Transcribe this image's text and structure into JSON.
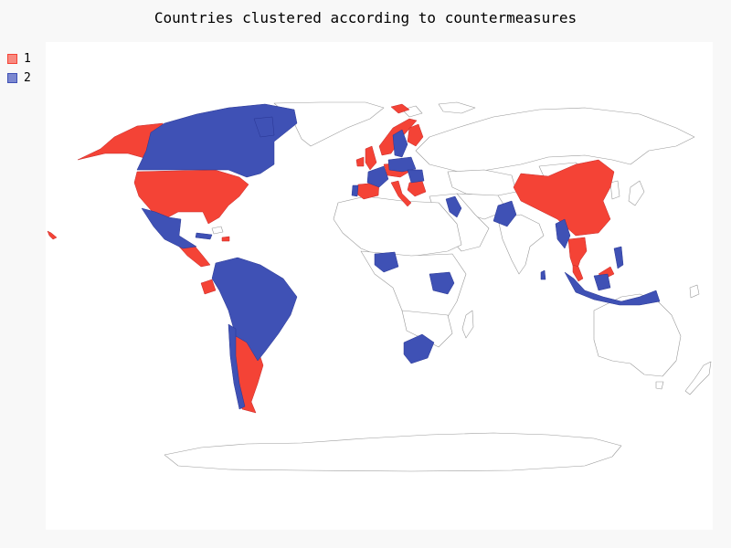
{
  "chart_data": {
    "type": "map",
    "title": "Countries clustered according to countermeasures",
    "series": [
      {
        "name": "1",
        "color": "#f44336",
        "countries": [
          "United States",
          "Alaska (US)",
          "Guatemala",
          "Honduras",
          "Nicaragua",
          "Costa Rica",
          "Panama",
          "Dominican Republic",
          "Ecuador",
          "Argentina",
          "Uruguay",
          "Chile (south)",
          "Ireland",
          "United Kingdom",
          "Spain",
          "Italy",
          "Austria",
          "Switzerland",
          "Czech Republic",
          "Croatia",
          "Greece",
          "Bulgaria",
          "Norway",
          "Finland",
          "Estonia",
          "Iceland",
          "China",
          "Thailand",
          "Cambodia",
          "Vietnam",
          "Malaysia (peninsula)",
          "Malaysia (Borneo)",
          "Brunei",
          "Hawaii (US)"
        ]
      },
      {
        "name": "2",
        "color": "#3f51b5",
        "countries": [
          "Canada",
          "Greenland (partial)",
          "Mexico",
          "El Salvador",
          "Cuba",
          "Brazil",
          "Bolivia",
          "Paraguay",
          "Peru",
          "Chile",
          "Colombia",
          "Venezuela",
          "France",
          "Portugal",
          "Germany",
          "Poland",
          "Hungary",
          "Romania",
          "Sweden",
          "Denmark",
          "Netherlands",
          "Belgium",
          "Israel",
          "Saudi Arabia (partial)",
          "Pakistan",
          "India (north-west)",
          "Myanmar",
          "Nigeria",
          "Kenya",
          "Uganda",
          "South Africa",
          "Indonesia",
          "Philippines",
          "Sri Lanka",
          "Papua New Guinea"
        ]
      }
    ],
    "legend": {
      "position": "top-left",
      "entries": [
        "1",
        "2"
      ]
    }
  }
}
